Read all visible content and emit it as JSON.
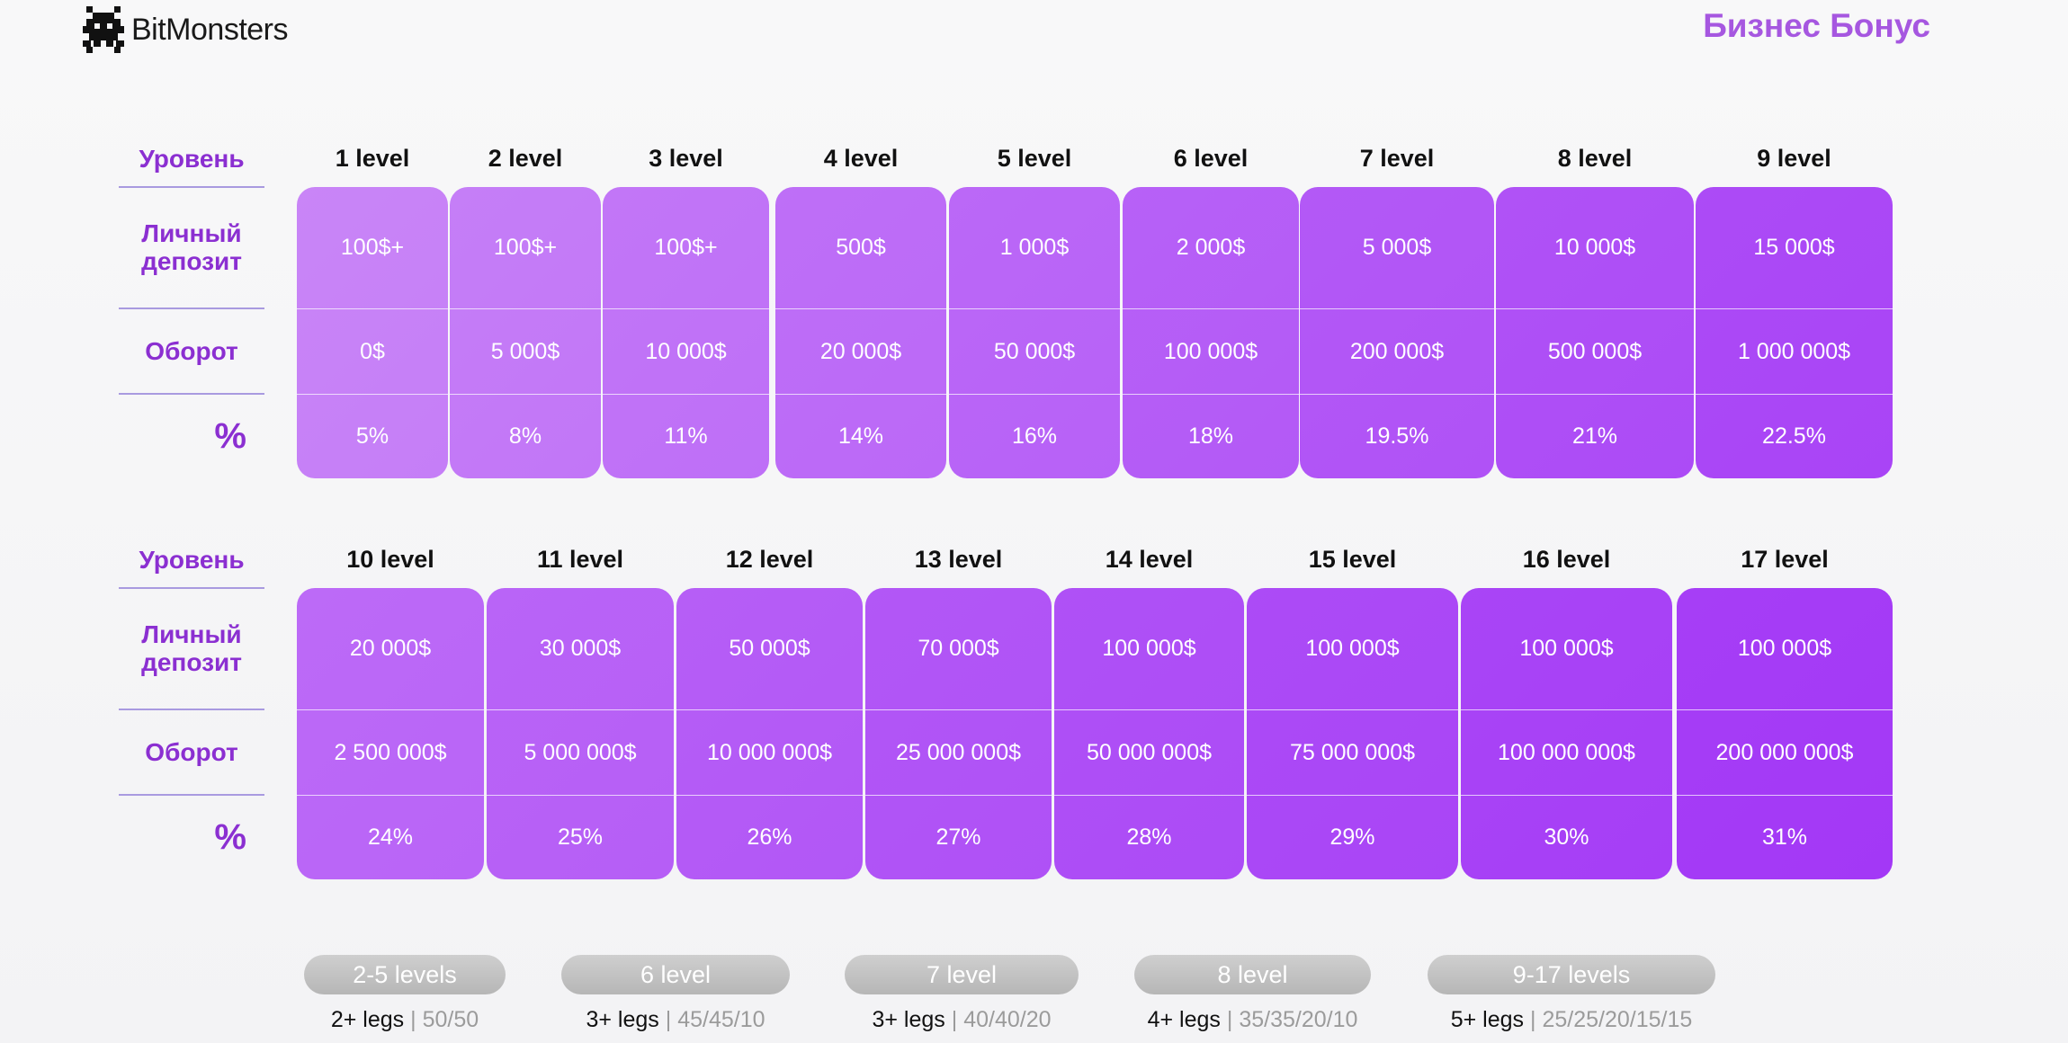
{
  "header": {
    "brand": "BitMonsters",
    "title": "Бизнес Бонус",
    "accent": "#a657e0",
    "label_color": "#8b2fd1"
  },
  "row_labels": {
    "level": "Уровень",
    "deposit_line1": "Личный",
    "deposit_line2": "депозит",
    "turnover": "Оборот",
    "percent": "%"
  },
  "table1": [
    {
      "level": "1 level",
      "deposit": "100$+",
      "turnover": "0$",
      "percent": "5%"
    },
    {
      "level": "2 level",
      "deposit": "100$+",
      "turnover": "5 000$",
      "percent": "8%"
    },
    {
      "level": "3 level",
      "deposit": "100$+",
      "turnover": "10 000$",
      "percent": "11%"
    },
    {
      "level": "4 level",
      "deposit": "500$",
      "turnover": "20 000$",
      "percent": "14%"
    },
    {
      "level": "5 level",
      "deposit": "1 000$",
      "turnover": "50 000$",
      "percent": "16%"
    },
    {
      "level": "6 level",
      "deposit": "2 000$",
      "turnover": "100 000$",
      "percent": "18%"
    },
    {
      "level": "7 level",
      "deposit": "5 000$",
      "turnover": "200 000$",
      "percent": "19.5%"
    },
    {
      "level": "8 level",
      "deposit": "10 000$",
      "turnover": "500 000$",
      "percent": "21%"
    },
    {
      "level": "9 level",
      "deposit": "15 000$",
      "turnover": "1 000 000$",
      "percent": "22.5%"
    }
  ],
  "table2": [
    {
      "level": "10 level",
      "deposit": "20 000$",
      "turnover": "2 500 000$",
      "percent": "24%"
    },
    {
      "level": "11 level",
      "deposit": "30 000$",
      "turnover": "5 000 000$",
      "percent": "25%"
    },
    {
      "level": "12 level",
      "deposit": "50 000$",
      "turnover": "10 000 000$",
      "percent": "26%"
    },
    {
      "level": "13 level",
      "deposit": "70 000$",
      "turnover": "25 000 000$",
      "percent": "27%"
    },
    {
      "level": "14 level",
      "deposit": "100 000$",
      "turnover": "50 000 000$",
      "percent": "28%"
    },
    {
      "level": "15 level",
      "deposit": "100 000$",
      "turnover": "75 000 000$",
      "percent": "29%"
    },
    {
      "level": "16 level",
      "deposit": "100 000$",
      "turnover": "100 000 000$",
      "percent": "30%"
    },
    {
      "level": "17 level",
      "deposit": "100 000$",
      "turnover": "200 000 000$",
      "percent": "31%"
    }
  ],
  "legs": [
    {
      "pill": "2-5 levels",
      "legs": "2+ legs",
      "separator": "|",
      "split": "50/50"
    },
    {
      "pill": "6 level",
      "legs": "3+ legs",
      "separator": "|",
      "split": "45/45/10"
    },
    {
      "pill": "7 level",
      "legs": "3+ legs",
      "separator": "|",
      "split": "40/40/20"
    },
    {
      "pill": "8 level",
      "legs": "4+ legs",
      "separator": "|",
      "split": "35/35/20/10"
    },
    {
      "pill": "9-17 levels",
      "legs": "5+ legs",
      "separator": "|",
      "split": "25/25/20/15/15"
    }
  ]
}
